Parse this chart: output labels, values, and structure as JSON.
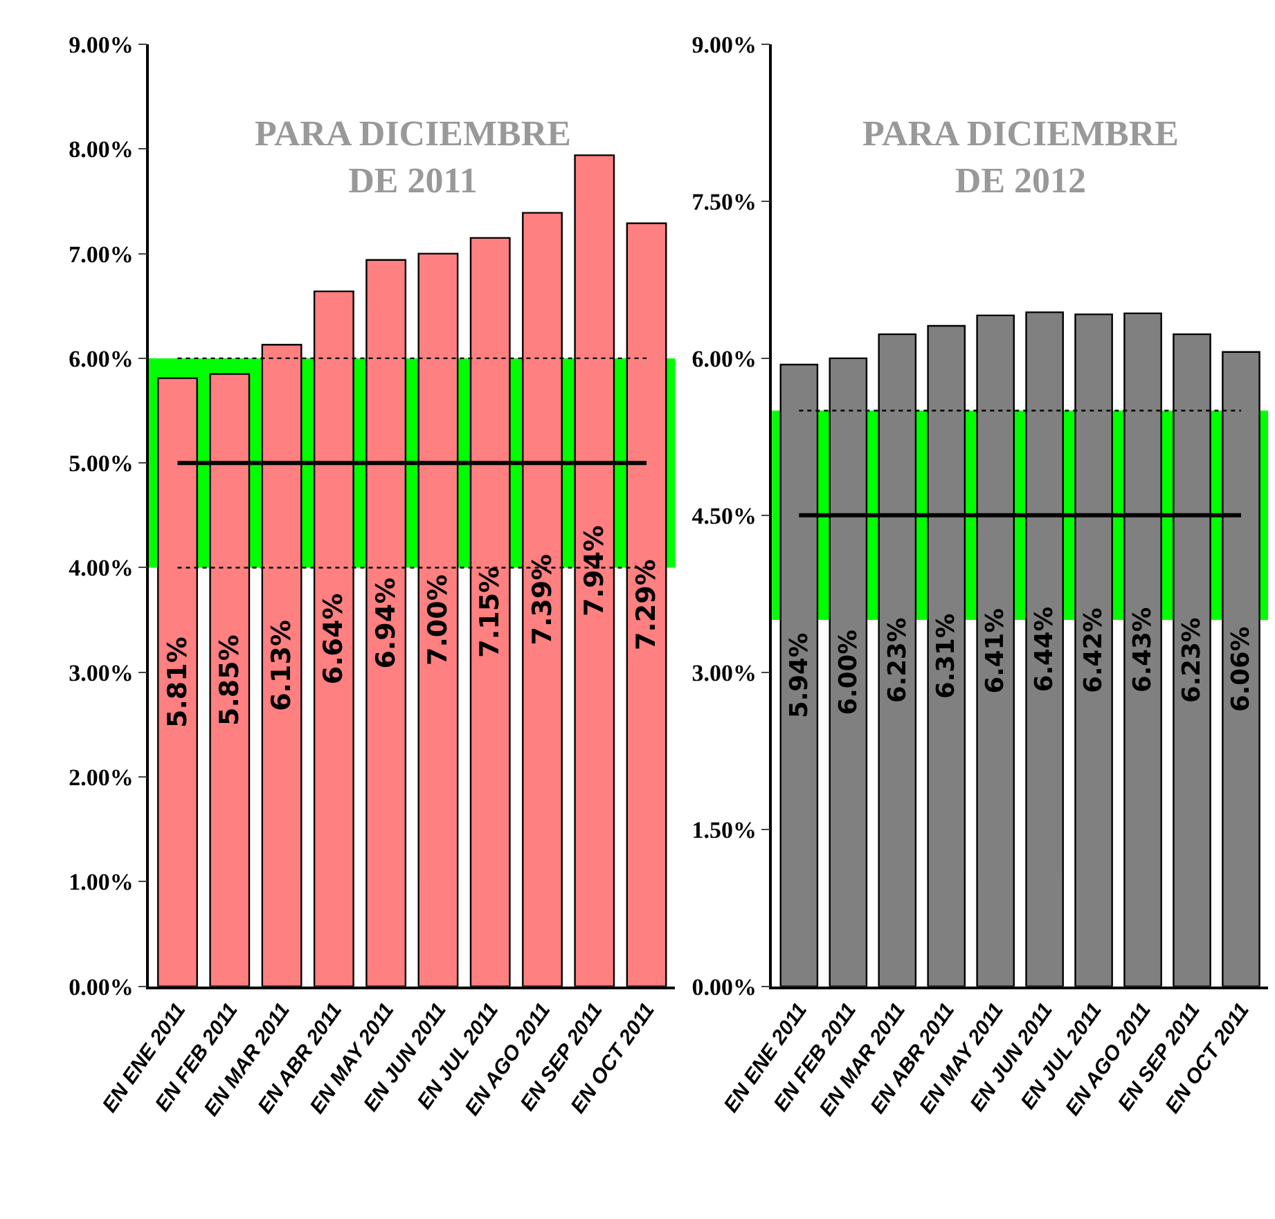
{
  "chart_data": [
    {
      "type": "bar",
      "title": "PARA DICIEMBRE\nDE 2011",
      "categories": [
        "EN ENE 2011",
        "EN FEB 2011",
        "EN MAR 2011",
        "EN ABR 2011",
        "EN MAY 2011",
        "EN JUN 2011",
        "EN JUL 2011",
        "EN AGO 2011",
        "EN SEP 2011",
        "EN OCT 2011"
      ],
      "values": [
        5.81,
        5.85,
        6.13,
        6.64,
        6.94,
        7.0,
        7.15,
        7.39,
        7.94,
        7.29
      ],
      "value_labels": [
        "5.81%",
        "5.85%",
        "6.13%",
        "6.64%",
        "6.94%",
        "7.00%",
        "7.15%",
        "7.39%",
        "7.94%",
        "7.29%"
      ],
      "color": "#ff8080",
      "ylim": [
        0,
        9
      ],
      "yticks": [
        {
          "value": 0,
          "label": "0.00%"
        },
        {
          "value": 1,
          "label": "1.00%"
        },
        {
          "value": 2,
          "label": "2.00%"
        },
        {
          "value": 3,
          "label": "3.00%"
        },
        {
          "value": 4,
          "label": "4.00%"
        },
        {
          "value": 5,
          "label": "5.00%"
        },
        {
          "value": 6,
          "label": "6.00%"
        },
        {
          "value": 7,
          "label": "7.00%"
        },
        {
          "value": 8,
          "label": "8.00%"
        },
        {
          "value": 9,
          "label": "9.00%"
        }
      ],
      "bands": [
        {
          "axis": "y",
          "from": 4,
          "to": 6,
          "color": "#00ff00"
        }
      ],
      "grid": false,
      "ref_lines": [
        {
          "axis": "y",
          "value": 5,
          "color": "#000000",
          "line_style": "solid"
        },
        {
          "axis": "y",
          "value": 4,
          "color": "#000000",
          "line_style": "dotted"
        },
        {
          "axis": "y",
          "value": 6,
          "color": "#000000",
          "line_style": "dotted"
        }
      ]
    },
    {
      "type": "bar",
      "title": "PARA DICIEMBRE\nDE 2012",
      "categories": [
        "EN ENE 2011",
        "EN FEB 2011",
        "EN MAR 2011",
        "EN ABR 2011",
        "EN MAY 2011",
        "EN JUN 2011",
        "EN JUL 2011",
        "EN AGO 2011",
        "EN SEP 2011",
        "EN OCT 2011"
      ],
      "values": [
        5.94,
        6.0,
        6.23,
        6.31,
        6.41,
        6.44,
        6.42,
        6.43,
        6.23,
        6.06
      ],
      "value_labels": [
        "5.94%",
        "6.00%",
        "6.23%",
        "6.31%",
        "6.41%",
        "6.44%",
        "6.42%",
        "6.43%",
        "6.23%",
        "6.06%"
      ],
      "color": "#808080",
      "ylim": [
        0,
        9
      ],
      "yticks": [
        {
          "value": 0,
          "label": "0.00%"
        },
        {
          "value": 1.5,
          "label": "1.50%"
        },
        {
          "value": 3,
          "label": "3.00%"
        },
        {
          "value": 4.5,
          "label": "4.50%"
        },
        {
          "value": 6,
          "label": "6.00%"
        },
        {
          "value": 7.5,
          "label": "7.50%"
        },
        {
          "value": 9,
          "label": "9.00%"
        }
      ],
      "bands": [
        {
          "axis": "y",
          "from": 3.5,
          "to": 5.5,
          "color": "#00ff00"
        }
      ],
      "ref_lines": [
        {
          "axis": "y",
          "value": 4.5,
          "color": "#000000",
          "line_style": "solid"
        },
        {
          "axis": "y",
          "value": 5.5,
          "color": "#000000",
          "line_style": "dotted"
        }
      ],
      "grid": false
    }
  ]
}
